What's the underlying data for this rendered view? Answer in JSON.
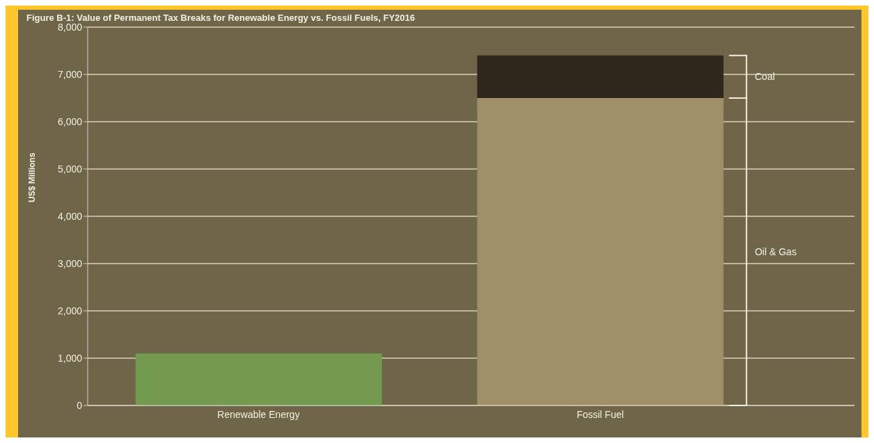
{
  "chart_data": {
    "type": "bar",
    "title": "Figure B-1: Value of Permanent Tax Breaks for Renewable Energy vs. Fossil Fuels, FY2016",
    "ylabel": "US$ Millions",
    "categories": [
      "Renewable Energy",
      "Fossil Fuel"
    ],
    "stacked": true,
    "ylim": [
      0,
      8000
    ],
    "yticks": [
      0,
      {
        "value": 1000,
        "label": "1,000"
      },
      {
        "value": 2000,
        "label": "2,000"
      },
      {
        "value": 3000,
        "label": "3,000"
      },
      {
        "value": 4000,
        "label": "4,000"
      },
      {
        "value": 5000,
        "label": "5,000"
      },
      {
        "value": 6000,
        "label": "6,000"
      },
      {
        "value": 7000,
        "label": "7,000"
      },
      {
        "value": 8000,
        "label": "8,000"
      }
    ],
    "grid": "y",
    "legend": false,
    "series": [
      {
        "color": "#739a4e",
        "values": [
          1100,
          null
        ]
      },
      {
        "name": "Oil & Gas",
        "color": "#a09068",
        "values": [
          null,
          6500
        ]
      },
      {
        "name": "Coal",
        "color": "#2e271c",
        "values": [
          null,
          900
        ]
      }
    ]
  }
}
